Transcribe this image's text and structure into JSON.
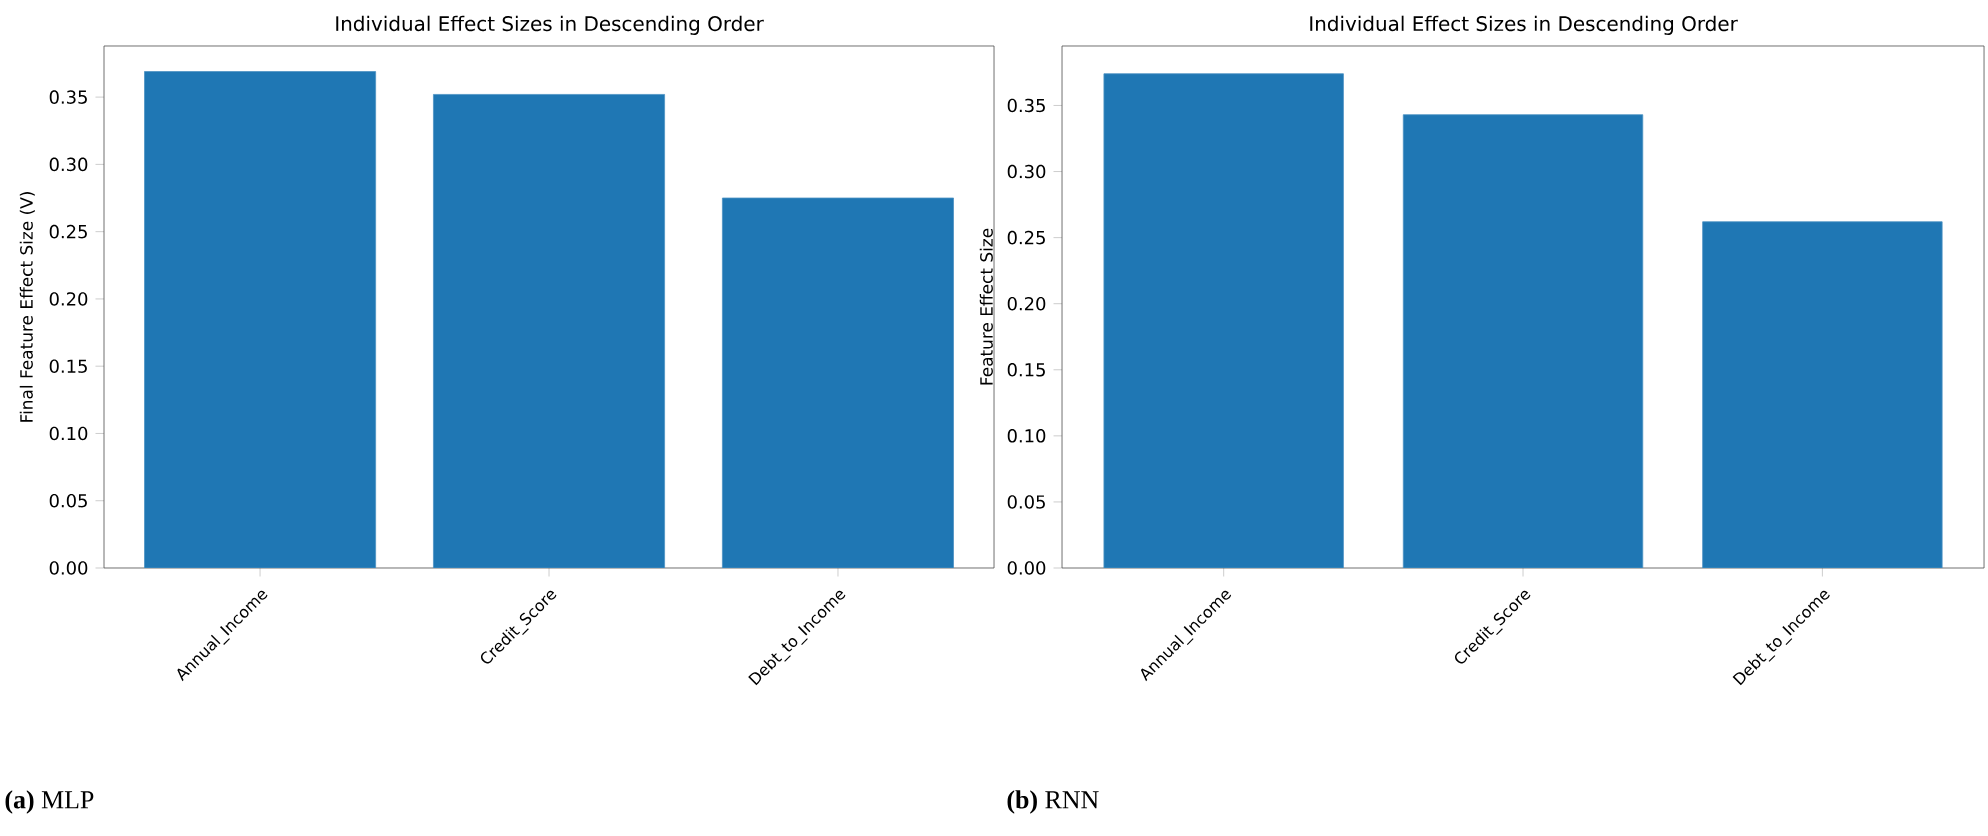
{
  "chart_data": [
    {
      "type": "bar",
      "title": "Individual Effect Sizes in Descending Order",
      "ylabel": "Final Feature Effect Size (V)",
      "categories": [
        "Annual_Income",
        "Credit_Score",
        "Debt_to_Income"
      ],
      "values": [
        0.369,
        0.352,
        0.275
      ],
      "color": "#1f77b4",
      "ylim": [
        0,
        0.388
      ],
      "yticks": [
        {
          "value": 0,
          "label": "0.00"
        },
        0.05,
        {
          "value": 0.1,
          "label": "0.10"
        },
        0.15,
        {
          "value": 0.2,
          "label": "0.20"
        },
        0.25,
        {
          "value": 0.3,
          "label": "0.30"
        },
        0.35
      ],
      "annotations": [
        "**(a)** MLP"
      ]
    },
    {
      "type": "bar",
      "title": "Individual Effect Sizes in Descending Order",
      "ylabel": "Feature Effect Size",
      "categories": [
        "Annual_Income",
        "Credit_Score",
        "Debt_to_Income"
      ],
      "values": [
        0.374,
        0.343,
        0.262
      ],
      "color": "#1f77b4",
      "ylim": [
        0,
        0.395
      ],
      "yticks": [
        {
          "value": 0,
          "label": "0.00"
        },
        0.05,
        {
          "value": 0.1,
          "label": "0.10"
        },
        0.15,
        {
          "value": 0.2,
          "label": "0.20"
        },
        0.25,
        {
          "value": 0.3,
          "label": "0.30"
        },
        0.35
      ],
      "annotations": [
        "**(b)** RNN"
      ]
    }
  ]
}
